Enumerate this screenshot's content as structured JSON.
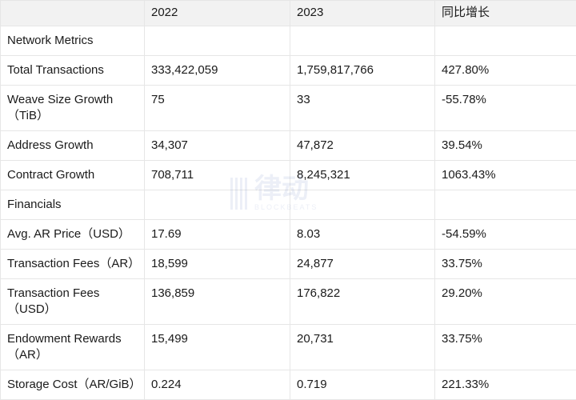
{
  "table": {
    "header": [
      "2022",
      "2023",
      "同比增长"
    ],
    "rows": [
      {
        "label": "Network Metrics"
      },
      {
        "label": "Total Transactions",
        "cells": [
          "333,422,059",
          "1,759,817,766",
          "427.80%"
        ]
      },
      {
        "label": "Weave Size Growth（TiB）",
        "cells": [
          "75",
          "33",
          "-55.78%"
        ]
      },
      {
        "label": "Address Growth",
        "cells": [
          "34,307",
          "47,872",
          "39.54%"
        ]
      },
      {
        "label": "Contract Growth",
        "cells": [
          "708,711",
          "8,245,321",
          "1063.43%"
        ]
      },
      {
        "label": "Financials"
      },
      {
        "label": "Avg. AR Price（USD）",
        "cells": [
          "17.69",
          "8.03",
          "-54.59%"
        ]
      },
      {
        "label": "Transaction Fees（AR）",
        "cells": [
          "18,599",
          "24,877",
          "33.75%"
        ]
      },
      {
        "label": "Transaction Fees（USD）",
        "cells": [
          "136,859",
          "176,822",
          "29.20%"
        ]
      },
      {
        "label": "Endowment Rewards（AR）",
        "cells": [
          "15,499",
          "20,731",
          "33.75%"
        ]
      },
      {
        "label": "Storage Cost（AR/GiB）",
        "cells": [
          "0.224",
          "0.719",
          "221.33%"
        ]
      }
    ]
  },
  "watermark": {
    "logo": "律动",
    "brand": "BLOCKBEATS"
  }
}
